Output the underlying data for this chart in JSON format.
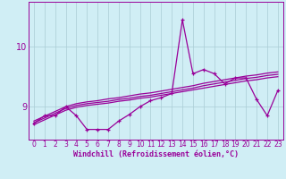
{
  "xlabel": "Windchill (Refroidissement éolien,°C)",
  "background_color": "#d0eef5",
  "line_color": "#990099",
  "grid_color": "#aaccd4",
  "x_data": [
    0,
    1,
    2,
    3,
    4,
    5,
    6,
    7,
    8,
    9,
    10,
    11,
    12,
    13,
    14,
    15,
    16,
    17,
    18,
    19,
    20,
    21,
    22,
    23
  ],
  "y_main": [
    8.72,
    8.85,
    8.85,
    9.0,
    8.85,
    8.62,
    8.62,
    8.62,
    8.76,
    8.87,
    9.0,
    9.1,
    9.15,
    9.22,
    10.45,
    9.55,
    9.62,
    9.55,
    9.38,
    9.48,
    9.48,
    9.12,
    8.85,
    9.27
  ],
  "y_line1": [
    8.73,
    8.81,
    8.89,
    8.97,
    9.02,
    9.05,
    9.07,
    9.09,
    9.12,
    9.14,
    9.17,
    9.19,
    9.22,
    9.25,
    9.28,
    9.31,
    9.35,
    9.38,
    9.41,
    9.44,
    9.47,
    9.49,
    9.52,
    9.54
  ],
  "y_line2": [
    8.76,
    8.84,
    8.92,
    9.0,
    9.05,
    9.08,
    9.1,
    9.13,
    9.15,
    9.18,
    9.21,
    9.23,
    9.26,
    9.29,
    9.32,
    9.35,
    9.39,
    9.42,
    9.45,
    9.48,
    9.51,
    9.53,
    9.56,
    9.58
  ],
  "y_line3": [
    8.7,
    8.78,
    8.86,
    8.94,
    8.99,
    9.02,
    9.04,
    9.06,
    9.09,
    9.11,
    9.14,
    9.16,
    9.19,
    9.22,
    9.25,
    9.28,
    9.31,
    9.34,
    9.37,
    9.4,
    9.43,
    9.45,
    9.48,
    9.5
  ],
  "ylim": [
    8.45,
    10.75
  ],
  "yticks": [
    9,
    10
  ],
  "xticks": [
    0,
    1,
    2,
    3,
    4,
    5,
    6,
    7,
    8,
    9,
    10,
    11,
    12,
    13,
    14,
    15,
    16,
    17,
    18,
    19,
    20,
    21,
    22,
    23
  ]
}
